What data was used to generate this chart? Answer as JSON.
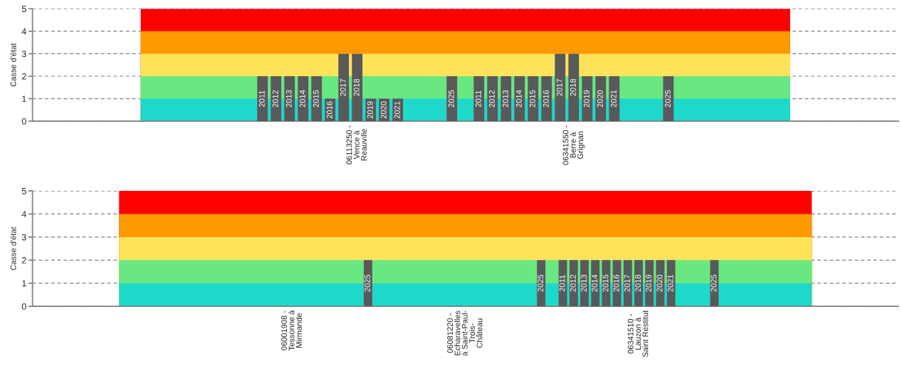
{
  "chart_data": [
    {
      "type": "bar",
      "ylabel": "Casse d'état",
      "categories": [
        null,
        "06113250 -\nVence à\nReauville",
        "06341550 -\nBerre à\nGrignan",
        null
      ],
      "ylim": [
        0,
        5
      ],
      "yticks": [
        0,
        1,
        2,
        3,
        4,
        5
      ],
      "grid": "y",
      "legend": false,
      "series": [
        {
          "type": "area",
          "color": "#ff0000",
          "values": [
            5,
            5,
            5,
            5
          ]
        },
        {
          "type": "area",
          "color": "#ff9900",
          "values": [
            4,
            4,
            4,
            4
          ]
        },
        {
          "type": "area",
          "color": "#ffe35a",
          "values": [
            3,
            3,
            3,
            3
          ]
        },
        {
          "type": "area",
          "color": "#69e882",
          "values": [
            2,
            null,
            null,
            2
          ]
        },
        {
          "type": "area",
          "color": "#1ed9c9",
          "values": [
            1,
            null,
            null,
            1
          ]
        },
        {
          "name": "2011",
          "color": "#595959",
          "values": [
            null,
            2,
            2,
            null
          ]
        },
        {
          "name": "2012",
          "color": "#595959",
          "values": [
            null,
            2,
            2,
            null
          ]
        },
        {
          "name": "2013",
          "color": "#595959",
          "values": [
            null,
            2,
            2,
            null
          ]
        },
        {
          "name": "2014",
          "color": "#595959",
          "values": [
            null,
            2,
            2,
            null
          ]
        },
        {
          "name": "2015",
          "color": "#595959",
          "values": [
            null,
            2,
            2,
            null
          ]
        },
        {
          "name": "2016",
          "color": "#595959",
          "values": [
            null,
            1,
            2,
            null
          ]
        },
        {
          "name": "2017",
          "color": "#595959",
          "values": [
            null,
            3,
            3,
            null
          ]
        },
        {
          "name": "2018",
          "color": "#595959",
          "values": [
            null,
            3,
            3,
            null
          ]
        },
        {
          "name": "2019",
          "color": "#595959",
          "values": [
            null,
            1,
            2,
            null
          ]
        },
        {
          "name": "2020",
          "color": "#595959",
          "values": [
            null,
            1,
            2,
            null
          ]
        },
        {
          "name": "2021",
          "color": "#595959",
          "values": [
            null,
            1,
            2,
            null
          ]
        },
        {
          "values": [
            null,
            null,
            null,
            null
          ]
        },
        {
          "values": [
            null,
            null,
            null,
            null
          ]
        },
        {
          "values": [
            null,
            null,
            null,
            null
          ]
        },
        {
          "name": "2025",
          "color": "#595959",
          "values": [
            null,
            2,
            2,
            null
          ]
        }
      ]
    },
    {
      "type": "bar",
      "ylabel": "Casse d'état",
      "categories": [
        null,
        "06001908 -\nTessonne à\nMirmande",
        "06081220 -\nEcharavelles\nà Saint-Paul-\nTrois-\nChâteau",
        "06341510 -\nLauzon à\nSaint Restitut",
        null
      ],
      "ylim": [
        0,
        5
      ],
      "yticks": [
        0,
        1,
        2,
        3,
        4,
        5
      ],
      "grid": "y",
      "legend": false,
      "series": [
        {
          "type": "area",
          "color": "#ff0000",
          "values": [
            5,
            5,
            5,
            5,
            5
          ]
        },
        {
          "type": "area",
          "color": "#ff9900",
          "values": [
            4,
            4,
            4,
            4,
            4
          ]
        },
        {
          "type": "area",
          "color": "#ffe35a",
          "values": [
            3,
            3,
            3,
            3,
            3
          ]
        },
        {
          "type": "area",
          "color": "#69e882",
          "values": [
            2,
            2,
            2,
            2,
            2
          ]
        },
        {
          "type": "area",
          "color": "#1ed9c9",
          "values": [
            1,
            1,
            1,
            null,
            1
          ]
        },
        {
          "name": "2011",
          "color": "#595959",
          "values": [
            null,
            null,
            null,
            2,
            null
          ]
        },
        {
          "name": "2012",
          "color": "#595959",
          "values": [
            null,
            null,
            null,
            2,
            null
          ]
        },
        {
          "name": "2013",
          "color": "#595959",
          "values": [
            null,
            null,
            null,
            2,
            null
          ]
        },
        {
          "name": "2014",
          "color": "#595959",
          "values": [
            null,
            null,
            null,
            2,
            null
          ]
        },
        {
          "name": "2015",
          "color": "#595959",
          "values": [
            null,
            null,
            null,
            2,
            null
          ]
        },
        {
          "name": "2016",
          "color": "#595959",
          "values": [
            null,
            null,
            null,
            2,
            null
          ]
        },
        {
          "name": "2017",
          "color": "#595959",
          "values": [
            null,
            null,
            null,
            2,
            null
          ]
        },
        {
          "name": "2018",
          "color": "#595959",
          "values": [
            null,
            null,
            null,
            2,
            null
          ]
        },
        {
          "name": "2019",
          "color": "#595959",
          "values": [
            null,
            null,
            null,
            2,
            null
          ]
        },
        {
          "name": "2020",
          "color": "#595959",
          "values": [
            null,
            null,
            null,
            2,
            null
          ]
        },
        {
          "name": "2021",
          "color": "#595959",
          "values": [
            null,
            null,
            null,
            2,
            null
          ]
        },
        {
          "values": [
            null,
            null,
            null,
            null,
            null
          ]
        },
        {
          "values": [
            null,
            null,
            null,
            null,
            null
          ]
        },
        {
          "values": [
            null,
            null,
            null,
            null,
            null
          ]
        },
        {
          "name": "2025",
          "color": "#595959",
          "values": [
            null,
            2,
            2,
            2,
            null
          ]
        }
      ]
    }
  ]
}
